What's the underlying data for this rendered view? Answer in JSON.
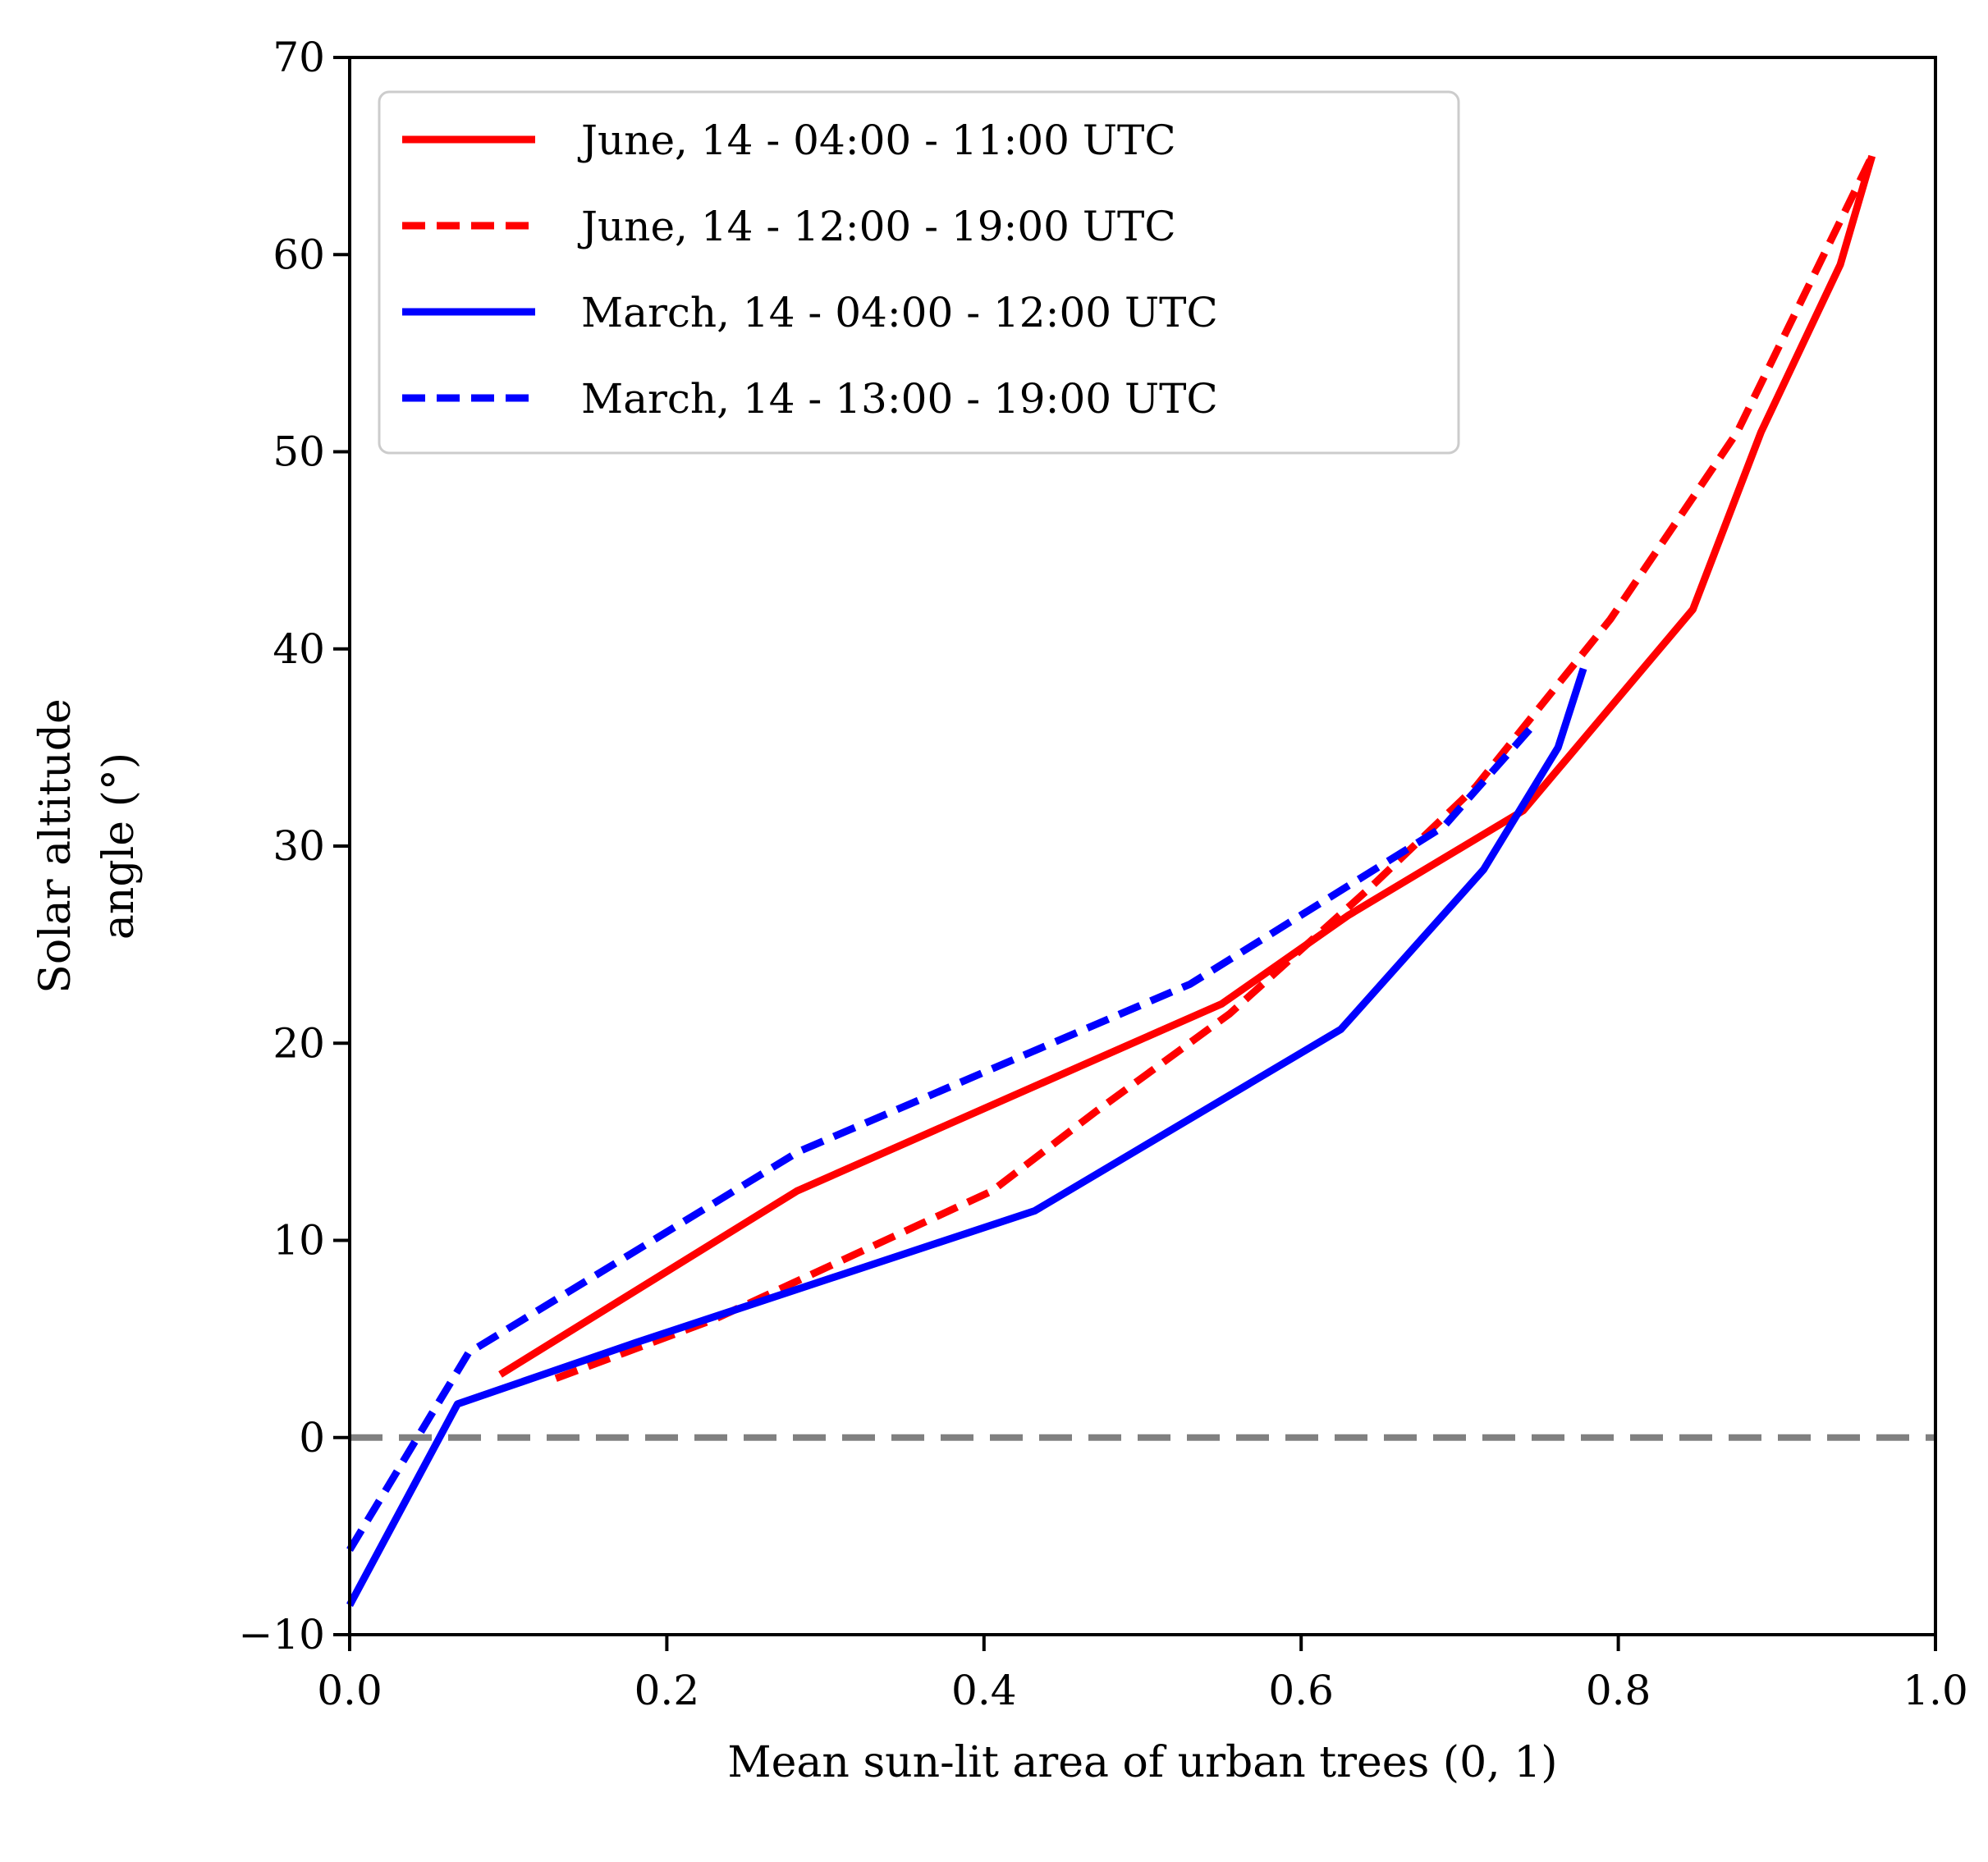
{
  "chart_data": {
    "type": "line",
    "title": "",
    "xlabel": "Mean sun-lit area of urban trees (0, 1)",
    "ylabel_lines": [
      "Solar altitude",
      "angle (°)"
    ],
    "xlim": [
      0.0,
      1.0
    ],
    "ylim": [
      -10,
      70
    ],
    "xticks": [
      0.0,
      0.2,
      0.4,
      0.6,
      0.8,
      1.0
    ],
    "xtick_labels": [
      "0.0",
      "0.2",
      "0.4",
      "0.6",
      "0.8",
      "1.0"
    ],
    "yticks": [
      -10,
      0,
      10,
      20,
      30,
      40,
      50,
      60,
      70
    ],
    "ytick_labels": [
      "−10",
      "0",
      "10",
      "20",
      "30",
      "40",
      "50",
      "60",
      "70"
    ],
    "grid": false,
    "legend_position": "upper-left",
    "reference_line": {
      "y": 0,
      "color": "#808080",
      "style": "dashed"
    },
    "series": [
      {
        "name": "June, 14 - 04:00 - 11:00 UTC",
        "color": "#ff0000",
        "style": "solid",
        "x": [
          0.095,
          0.282,
          0.55,
          0.63,
          0.74,
          0.847,
          0.89,
          0.94,
          0.96
        ],
        "y": [
          3.2,
          12.5,
          22.0,
          26.5,
          31.8,
          42.0,
          51.0,
          59.5,
          65.0
        ]
      },
      {
        "name": "June, 14 - 12:00 - 19:00 UTC",
        "color": "#ff0000",
        "style": "dashed",
        "x": [
          0.13,
          0.23,
          0.405,
          0.47,
          0.555,
          0.645,
          0.71,
          0.795,
          0.875,
          0.96
        ],
        "y": [
          3.0,
          6.0,
          12.5,
          16.5,
          21.5,
          28.0,
          33.0,
          41.5,
          51.0,
          65.0
        ]
      },
      {
        "name": "March, 14 - 04:00 - 12:00 UTC",
        "color": "#0000ff",
        "style": "solid",
        "x": [
          0.0,
          0.068,
          0.18,
          0.432,
          0.625,
          0.715,
          0.762,
          0.778
        ],
        "y": [
          -8.5,
          1.7,
          4.8,
          11.5,
          20.7,
          28.8,
          35.0,
          39.0
        ]
      },
      {
        "name": "March, 14 - 13:00 - 19:00 UTC",
        "color": "#0000ff",
        "style": "dashed",
        "x": [
          0.0,
          0.075,
          0.283,
          0.53,
          0.63,
          0.69,
          0.745
        ],
        "y": [
          -5.7,
          4.3,
          14.5,
          23.0,
          28.0,
          31.0,
          36.0
        ]
      }
    ]
  }
}
